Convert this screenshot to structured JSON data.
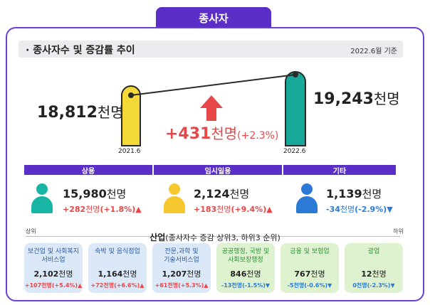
{
  "tab_title": "종사자",
  "section": {
    "title": "· 종사자수 및 증감률 추이",
    "date": "2022.6월 기준"
  },
  "totals": {
    "left_value": "18,812",
    "left_unit": "천명",
    "left_year": "2021.6",
    "right_value": "19,243",
    "right_unit": "천명",
    "right_year": "2022.6",
    "change_value": "+431",
    "change_unit": "천명",
    "change_pct": "(+2.3%)"
  },
  "categories": [
    {
      "label": "상용",
      "value": "15,980",
      "unit": "천명",
      "change": "+282",
      "change_unit": "천명",
      "change_pct": "(+1.8%)",
      "color": "#18b5a5"
    },
    {
      "label": "임시일용",
      "value": "2,124",
      "unit": "천명",
      "change": "+183",
      "change_unit": "천명",
      "change_pct": "(+9.4%)",
      "color": "#f7c72f"
    },
    {
      "label": "기타",
      "value": "1,139",
      "unit": "천명",
      "change": "-34",
      "change_unit": "천명",
      "change_pct": "(-2.9%)",
      "color": "#2b7bd6"
    }
  ],
  "industry": {
    "title": "산업",
    "subtitle": "(종사자수 증감 상위3, 하위3 순위)",
    "top_label": "상위",
    "bottom_label": "하위",
    "cards": [
      {
        "name1": "보건업 및 사회복지",
        "name2": "서비스업",
        "value": "2,102",
        "unit": "천명",
        "change": "+107천명(+5.4%)"
      },
      {
        "name1": "숙박 및 음식점업",
        "name2": "",
        "value": "1,164",
        "unit": "천명",
        "change": "+72천명(+6.6%)"
      },
      {
        "name1": "전문,과학 및",
        "name2": "기술서비스업",
        "value": "1,207",
        "unit": "천명",
        "change": "+61천명(+5.3%)"
      },
      {
        "name1": "공공행정, 국방 및",
        "name2": "사회보장행정",
        "value": "846",
        "unit": "천명",
        "change": "-13천명(-1.5%)"
      },
      {
        "name1": "금융 및 보험업",
        "name2": "",
        "value": "767",
        "unit": "천명",
        "change": "-5천명(-0.6%)"
      },
      {
        "name1": "광업",
        "name2": "",
        "value": "12",
        "unit": "천명",
        "change": "0천명(-2.3%)"
      }
    ]
  },
  "colors": {
    "accent": "#5b2fc7",
    "up": "#e8474a",
    "down": "#2b7bd6",
    "blue_card": "#dbe8f7",
    "green_card": "#dff2cf"
  }
}
